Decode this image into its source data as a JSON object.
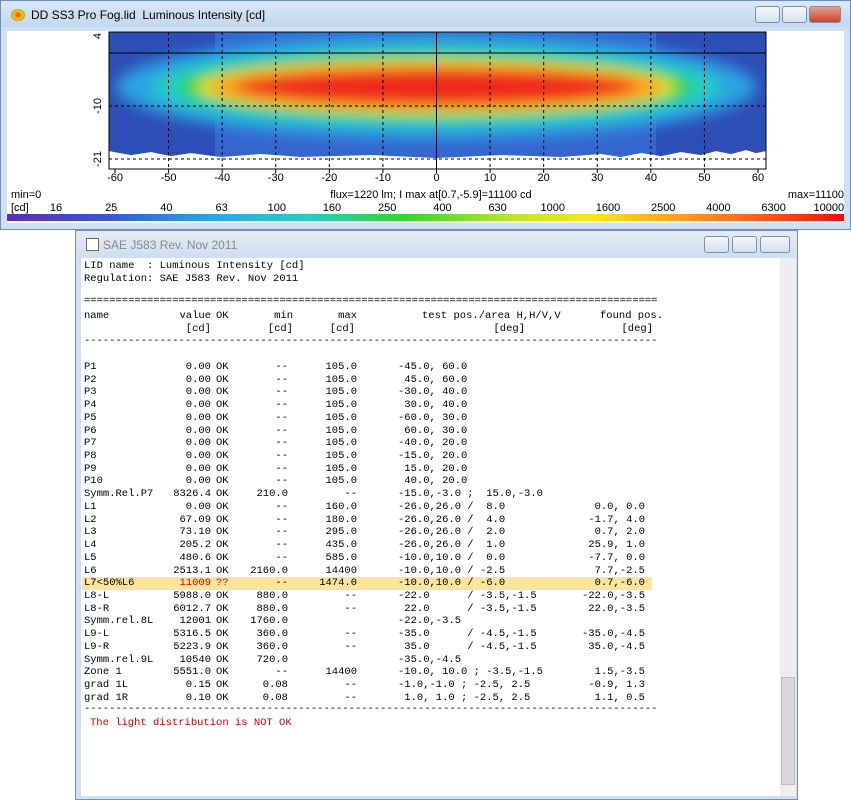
{
  "plot_window": {
    "title": "DD SS3 Pro Fog.lid  Luminous Intensity [cd]",
    "x_ticks": [
      "-60",
      "-50",
      "-40",
      "-30",
      "-20",
      "-10",
      "0",
      "10",
      "20",
      "30",
      "40",
      "50",
      "60"
    ],
    "y_ticks": [
      "4",
      "-10",
      "-21"
    ],
    "min_label": "min=0",
    "info": "flux=1220 lm; I max at[0.7,-5.9]=11100 cd",
    "max_label": "max=11100",
    "scale_unit": "[cd]",
    "scale_labels": [
      "16",
      "25",
      "40",
      "63",
      "100",
      "160",
      "250",
      "400",
      "630",
      "1000",
      "1600",
      "2500",
      "4000",
      "6300",
      "10000"
    ]
  },
  "report_window": {
    "title": "SAE J583 Rev. Nov 2011",
    "lines": [
      "LID name  : Luminous Intensity [cd]",
      "Regulation: SAE J583 Rev. Nov 2011"
    ],
    "header": {
      "name": "name",
      "value": "value",
      "ok": "OK",
      "min": "min",
      "max": "max",
      "test": "test pos./area H,H/V,V",
      "found": "found pos.",
      "units": {
        "value": "[cd]",
        "min": "[cd]",
        "max": "[cd]",
        "test": "[deg]",
        "found": "[deg]"
      }
    },
    "rows": [
      {
        "name": "P1",
        "value": "0.00",
        "ok": "OK",
        "min": "--",
        "max": "105.0",
        "test": "-45.0, 60.0",
        "found": ""
      },
      {
        "name": "P2",
        "value": "0.00",
        "ok": "OK",
        "min": "--",
        "max": "105.0",
        "test": " 45.0, 60.0",
        "found": ""
      },
      {
        "name": "P3",
        "value": "0.00",
        "ok": "OK",
        "min": "--",
        "max": "105.0",
        "test": "-30.0, 40.0",
        "found": ""
      },
      {
        "name": "P4",
        "value": "0.00",
        "ok": "OK",
        "min": "--",
        "max": "105.0",
        "test": " 30.0, 40.0",
        "found": ""
      },
      {
        "name": "P5",
        "value": "0.00",
        "ok": "OK",
        "min": "--",
        "max": "105.0",
        "test": "-60.0, 30.0",
        "found": ""
      },
      {
        "name": "P6",
        "value": "0.00",
        "ok": "OK",
        "min": "--",
        "max": "105.0",
        "test": " 60.0, 30.0",
        "found": ""
      },
      {
        "name": "P7",
        "value": "0.00",
        "ok": "OK",
        "min": "--",
        "max": "105.0",
        "test": "-40.0, 20.0",
        "found": ""
      },
      {
        "name": "P8",
        "value": "0.00",
        "ok": "OK",
        "min": "--",
        "max": "105.0",
        "test": "-15.0, 20.0",
        "found": ""
      },
      {
        "name": "P9",
        "value": "0.00",
        "ok": "OK",
        "min": "--",
        "max": "105.0",
        "test": " 15.0, 20.0",
        "found": ""
      },
      {
        "name": "P10",
        "value": "0.00",
        "ok": "OK",
        "min": "--",
        "max": "105.0",
        "test": " 40.0, 20.0",
        "found": ""
      },
      {
        "name": "Symm.Rel.P7",
        "value": "8326.4",
        "ok": "OK",
        "min": "210.0",
        "max": "--",
        "test": "-15.0,-3.0 ;  15.0,-3.0",
        "found": ""
      },
      {
        "name": "L1",
        "value": "0.00",
        "ok": "OK",
        "min": "--",
        "max": "160.0",
        "test": "-26.0,26.0 /  8.0",
        "found": "0.0, 0.0"
      },
      {
        "name": "L2",
        "value": "67.09",
        "ok": "OK",
        "min": "--",
        "max": "180.0",
        "test": "-26.0,26.0 /  4.0",
        "found": "-1.7, 4.0"
      },
      {
        "name": "L3",
        "value": "73.10",
        "ok": "OK",
        "min": "--",
        "max": "295.0",
        "test": "-26.0,26.0 /  2.0",
        "found": "0.7, 2.0"
      },
      {
        "name": "L4",
        "value": "205.2",
        "ok": "OK",
        "min": "--",
        "max": "435.0",
        "test": "-26.0,26.0 /  1.0",
        "found": "25.9, 1.0"
      },
      {
        "name": "L5",
        "value": "480.6",
        "ok": "OK",
        "min": "--",
        "max": "585.0",
        "test": "-10.0,10.0 /  0.0",
        "found": "-7.7, 0.0"
      },
      {
        "name": "L6",
        "value": "2513.1",
        "ok": "OK",
        "min": "2160.0",
        "max": "14400",
        "test": "-10.0,10.0 / -2.5",
        "found": "7.7,-2.5"
      },
      {
        "name": "L7<50%L6",
        "value": "11009",
        "ok": "??",
        "min": "--",
        "max": "1474.0",
        "test": "-10.0,10.0 / -6.0",
        "found": "0.7,-6.0",
        "highlight": true
      },
      {
        "name": "L8-L",
        "value": "5988.0",
        "ok": "OK",
        "min": "880.0",
        "max": "--",
        "test": "-22.0      / -3.5,-1.5",
        "found": "-22.0,-3.5"
      },
      {
        "name": "L8-R",
        "value": "6012.7",
        "ok": "OK",
        "min": "880.0",
        "max": "--",
        "test": " 22.0      / -3.5,-1.5",
        "found": "22.0,-3.5"
      },
      {
        "name": "Symm.rel.8L",
        "value": "12001",
        "ok": "OK",
        "min": "1760.0",
        "max": "",
        "test": "-22.0,-3.5",
        "found": ""
      },
      {
        "name": "L9-L",
        "value": "5316.5",
        "ok": "OK",
        "min": "360.0",
        "max": "--",
        "test": "-35.0      / -4.5,-1.5",
        "found": "-35.0,-4.5"
      },
      {
        "name": "L9-R",
        "value": "5223.9",
        "ok": "OK",
        "min": "360.0",
        "max": "--",
        "test": " 35.0      / -4.5,-1.5",
        "found": "35.0,-4.5"
      },
      {
        "name": "Symm.rel.9L",
        "value": "10540",
        "ok": "OK",
        "min": "720.0",
        "max": "",
        "test": "-35.0,-4.5",
        "found": ""
      },
      {
        "name": "Zone 1",
        "value": "5551.0",
        "ok": "OK",
        "min": "--",
        "max": "14400",
        "test": "-10.0, 10.0 ; -3.5,-1.5",
        "found": "1.5,-3.5"
      },
      {
        "name": "grad 1L",
        "value": "0.15",
        "ok": "OK",
        "min": "0.08",
        "max": "--",
        "test": "-1.0,-1.0 ; -2.5, 2.5",
        "found": "-0.9, 1.3"
      },
      {
        "name": "grad 1R",
        "value": "0.10",
        "ok": "OK",
        "min": "0.08",
        "max": "--",
        "test": " 1.0, 1.0 ; -2.5, 2.5",
        "found": "1.1, 0.5"
      }
    ],
    "message": "The light distribution is NOT OK"
  }
}
